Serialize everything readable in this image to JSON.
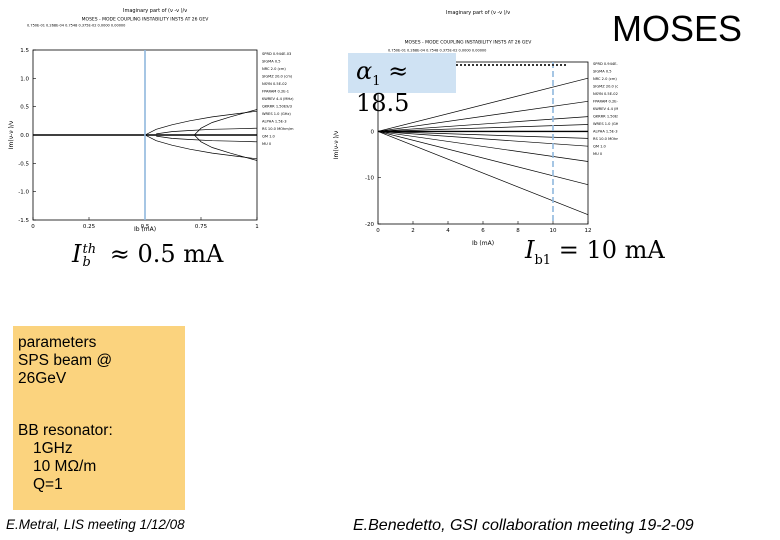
{
  "header": {
    "title": "MOSES"
  },
  "charts_text": {
    "left": {
      "title": "Imaginary part of (ν -ν )/ν",
      "subtitle": "MOSES - MODE COUPLING INSTABILITY INSTS AT 26 GEV",
      "header_line": "0.750E-01 0.268E-04 0.7548 0.375E-02 0.0000 0.00000",
      "xlabel": "Ib (mA)",
      "ylabel": "Im(ν-ν )/ν",
      "xticks": [
        "0",
        "0.25",
        "0.5",
        "0.75",
        "1"
      ],
      "yticks": [
        "1.5",
        "1.0",
        "0.5",
        "0.0",
        "-0.5",
        "-1.0",
        "-1.5"
      ],
      "legend": [
        "SPRD 0.944E-03",
        "SIGMA 0.5",
        "NRC 2.0 (cm)",
        "SIGMZ 20.0 (cm)",
        "NSYN 0.5E-02",
        "FPARAM 0.2E-1",
        "KWREV 4.4 (MHz)",
        "QKRRR 1.50E9/3",
        "WRES 1.0 (GHz)",
        "ALPHA 1.5E-3",
        "RS 10.0 MOhm/m",
        "QM 1.0",
        "MU 0"
      ]
    },
    "right": {
      "title": "Imaginary part of (ν -ν )/ν",
      "subtitle": "MOSES - MODE COUPLING INSTABILITY INSTS AT 26 GEV",
      "header_line": "0.750E-01 0.268E-04 0.7548 0.375E-02 0.0000 0.00000",
      "xlabel": "Ib (mA)",
      "ylabel": "Im(ν-ν )/ν",
      "xticks": [
        "0",
        "2",
        "4",
        "6",
        "8",
        "10",
        "12"
      ],
      "yticks": [
        "10",
        "0",
        "-10",
        "-20"
      ],
      "legend": [
        "SPRD 0.944E-03",
        "SIGMA 0.5",
        "NRC 2.0 (cm)",
        "SIGMZ 20.0 (cm)",
        "NSYN 0.5E-02",
        "FPARAM 0.2E-1",
        "KWREV 4.4 (MHz)",
        "QKRRR 1.50E9/3",
        "WRES 1.0 (GHz)",
        "ALPHA 1.5E-3",
        "RS 10.0 MOhm/m",
        "QM 1.0",
        "MU 0"
      ]
    }
  },
  "formulas": {
    "alpha": {
      "sym": "α",
      "sub": "1",
      "rest": "≈ 18.5"
    },
    "left_ith": {
      "sym": "I",
      "sup": "th",
      "sub": "b",
      "rest": "≈ 0.5 mA"
    },
    "right_ib1": {
      "sym": "I",
      "sub": "b1",
      "rest": "= 10 mA"
    }
  },
  "params": {
    "l1": "parameters",
    "l2": "SPS beam @",
    "l3": "26GeV",
    "l4": "BB resonator:",
    "l5": "1GHz",
    "l6": "10 MΩ/m",
    "l7": "Q=1"
  },
  "footer": {
    "left": "E.Metral, LIS meeting 1/12/08",
    "right": "E.Benedetto, GSI collaboration meeting 19-2-09"
  },
  "colors": {
    "params_bg": "#fbd37e",
    "alpha_bg": "#cfe2f3",
    "marker_line": "#8fb8de"
  },
  "chart_data": [
    {
      "type": "line",
      "title": "Imaginary part of (ν -ν )/ν",
      "xlabel": "Ib (mA)",
      "ylabel": "Im(ν-ν )/ν",
      "xlim": [
        0,
        1
      ],
      "ylim": [
        -1.5,
        1.5
      ],
      "threshold_x": 0.5,
      "series": [
        {
          "x": [
            0,
            0.5,
            0.55,
            0.62,
            0.7,
            0.8,
            0.9,
            1.0
          ],
          "y": [
            0,
            0,
            0.1,
            0.18,
            0.25,
            0.32,
            0.37,
            0.42
          ]
        },
        {
          "x": [
            0,
            0.5,
            0.55,
            0.62,
            0.7,
            0.8,
            0.9,
            1.0
          ],
          "y": [
            0,
            0,
            -0.1,
            -0.18,
            -0.25,
            -0.32,
            -0.37,
            -0.42
          ]
        },
        {
          "x": [
            0.72,
            0.75,
            0.8,
            0.88,
            1.0
          ],
          "y": [
            0,
            0.12,
            0.22,
            0.32,
            0.45
          ]
        },
        {
          "x": [
            0.72,
            0.75,
            0.8,
            0.88,
            1.0
          ],
          "y": [
            0,
            -0.12,
            -0.22,
            -0.32,
            -0.45
          ]
        },
        {
          "x": [
            0.55,
            0.62,
            0.7,
            0.8,
            0.9,
            1.0
          ],
          "y": [
            0.02,
            0.06,
            0.08,
            0.1,
            0.11,
            0.12
          ]
        },
        {
          "x": [
            0.55,
            0.62,
            0.7,
            0.8,
            0.9,
            1.0
          ],
          "y": [
            -0.02,
            -0.06,
            -0.08,
            -0.1,
            -0.11,
            -0.12
          ]
        },
        {
          "x": [
            0,
            1.0
          ],
          "y": [
            0,
            0
          ]
        }
      ]
    },
    {
      "type": "line",
      "title": "Imaginary part of (ν -ν )/ν",
      "xlabel": "Ib (mA)",
      "ylabel": "Im(ν-ν )/ν",
      "xlim": [
        0,
        12
      ],
      "ylim": [
        -20,
        15
      ],
      "threshold_x": 10,
      "series": [
        {
          "x": [
            0,
            12
          ],
          "y": [
            0,
            11.5
          ]
        },
        {
          "x": [
            0,
            12
          ],
          "y": [
            0,
            -11.5
          ]
        },
        {
          "x": [
            0,
            12
          ],
          "y": [
            0,
            6.5
          ]
        },
        {
          "x": [
            0,
            12
          ],
          "y": [
            0,
            -6.5
          ]
        },
        {
          "x": [
            0,
            12
          ],
          "y": [
            0,
            3.2
          ]
        },
        {
          "x": [
            0,
            12
          ],
          "y": [
            0,
            -3.2
          ]
        },
        {
          "x": [
            0,
            12
          ],
          "y": [
            0,
            1.5
          ]
        },
        {
          "x": [
            0,
            12
          ],
          "y": [
            0,
            -1.5
          ]
        },
        {
          "x": [
            0,
            12
          ],
          "y": [
            0,
            -18
          ]
        },
        {
          "x": [
            0,
            12
          ],
          "y": [
            0,
            0
          ]
        }
      ]
    }
  ]
}
